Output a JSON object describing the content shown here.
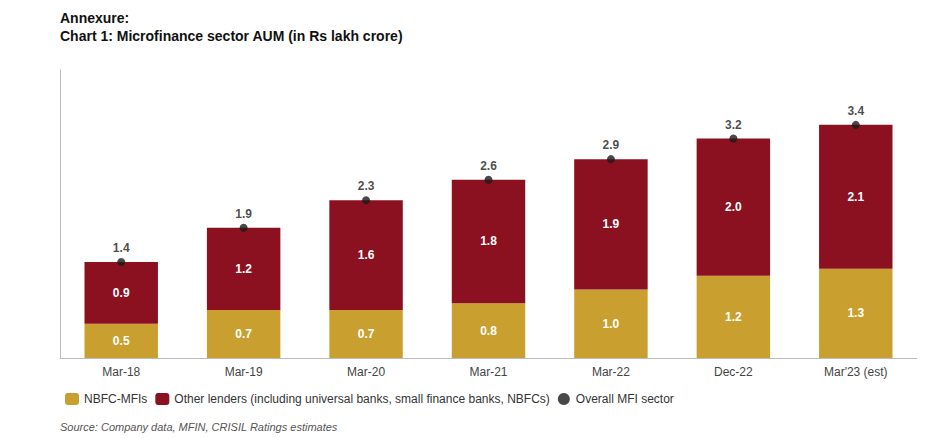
{
  "chart_data": {
    "type": "bar",
    "title": "Annexure:",
    "subtitle": "Chart 1: Microfinance sector AUM (in Rs lakh crore)",
    "categories": [
      "Mar-18",
      "Mar-19",
      "Mar-20",
      "Mar-21",
      "Mar-22",
      "Dec-22",
      "Mar'23 (est)"
    ],
    "series": [
      {
        "name": "NBFC-MFIs",
        "color": "#C9A030",
        "values": [
          0.5,
          0.7,
          0.7,
          0.8,
          1.0,
          1.2,
          1.3
        ],
        "value_labels": [
          "0.5",
          "0.7",
          "0.7",
          "0.8",
          "1.0",
          "1.2",
          "1.3"
        ]
      },
      {
        "name": "Other lenders (including universal banks, small finance banks, NBFCs)",
        "color": "#8B1020",
        "values": [
          0.9,
          1.2,
          1.6,
          1.8,
          1.9,
          2.0,
          2.1
        ],
        "value_labels": [
          "0.9",
          "1.2",
          "1.6",
          "1.8",
          "1.9",
          "2.0",
          "2.1"
        ]
      },
      {
        "name": "Overall MFI sector",
        "type": "scatter",
        "color": "#1a1a1a",
        "values": [
          1.4,
          1.9,
          2.3,
          2.6,
          2.9,
          3.2,
          3.4
        ],
        "value_labels": [
          "1.4",
          "1.9",
          "2.3",
          "2.6",
          "2.9",
          "3.2",
          "3.4"
        ]
      }
    ],
    "stacked": true,
    "data_labels": true,
    "ylim": [
      0,
      4.2
    ],
    "tick_labels": "x",
    "grid": false,
    "legend": "bottom",
    "annotations": [
      "Source: Company data, MFIN, CRISIL Ratings estimates"
    ]
  }
}
